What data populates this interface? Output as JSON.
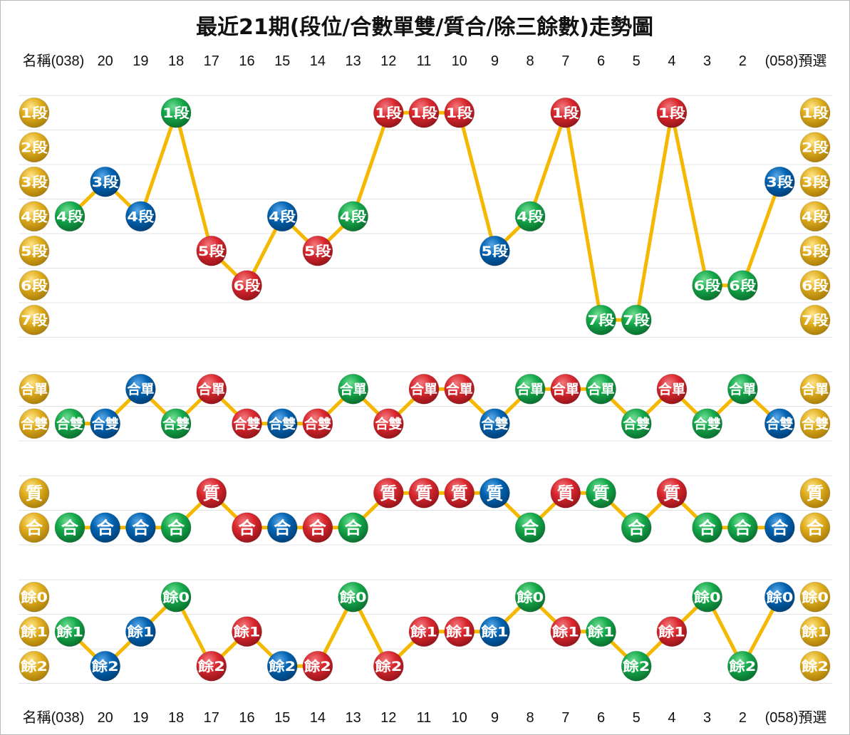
{
  "chart_data": {
    "type": "line",
    "title": "最近21期(段位/合數單雙/質合/除三餘數)走勢圖",
    "header": {
      "first_label": "名稱(038)",
      "periods": [
        "20",
        "19",
        "18",
        "17",
        "16",
        "15",
        "14",
        "13",
        "12",
        "11",
        "10",
        "9",
        "8",
        "7",
        "6",
        "5",
        "4",
        "3",
        "2"
      ],
      "last_label": "(058)預選"
    },
    "colors": {
      "line": "#f5b800",
      "grid": "#e3e3e3",
      "legend": "#d9a91a",
      "red": "#d9272e",
      "green": "#13a84a",
      "blue": "#0062b0"
    },
    "panels": [
      {
        "name": "section",
        "categories": [
          "1段",
          "2段",
          "3段",
          "4段",
          "5段",
          "6段",
          "7段"
        ],
        "first": {
          "value": "4段",
          "color": "green"
        },
        "points": [
          {
            "value": "3段",
            "color": "blue"
          },
          {
            "value": "4段",
            "color": "blue"
          },
          {
            "value": "1段",
            "color": "green"
          },
          {
            "value": "5段",
            "color": "red"
          },
          {
            "value": "6段",
            "color": "red"
          },
          {
            "value": "4段",
            "color": "blue"
          },
          {
            "value": "5段",
            "color": "red"
          },
          {
            "value": "4段",
            "color": "green"
          },
          {
            "value": "1段",
            "color": "red"
          },
          {
            "value": "1段",
            "color": "red"
          },
          {
            "value": "1段",
            "color": "red"
          },
          {
            "value": "5段",
            "color": "blue"
          },
          {
            "value": "4段",
            "color": "green"
          },
          {
            "value": "1段",
            "color": "red"
          },
          {
            "value": "7段",
            "color": "green"
          },
          {
            "value": "7段",
            "color": "green"
          },
          {
            "value": "1段",
            "color": "red"
          },
          {
            "value": "6段",
            "color": "green"
          },
          {
            "value": "6段",
            "color": "green"
          }
        ],
        "prediction": {
          "value": "3段",
          "color": "blue"
        }
      },
      {
        "name": "odd-even",
        "categories": [
          "合單",
          "合雙"
        ],
        "first": {
          "value": "合雙",
          "color": "green"
        },
        "points": [
          {
            "value": "合雙",
            "color": "blue"
          },
          {
            "value": "合單",
            "color": "blue"
          },
          {
            "value": "合雙",
            "color": "green"
          },
          {
            "value": "合單",
            "color": "red"
          },
          {
            "value": "合雙",
            "color": "red"
          },
          {
            "value": "合雙",
            "color": "blue"
          },
          {
            "value": "合雙",
            "color": "red"
          },
          {
            "value": "合單",
            "color": "green"
          },
          {
            "value": "合雙",
            "color": "red"
          },
          {
            "value": "合單",
            "color": "red"
          },
          {
            "value": "合單",
            "color": "red"
          },
          {
            "value": "合雙",
            "color": "blue"
          },
          {
            "value": "合單",
            "color": "green"
          },
          {
            "value": "合單",
            "color": "red"
          },
          {
            "value": "合單",
            "color": "green"
          },
          {
            "value": "合雙",
            "color": "green"
          },
          {
            "value": "合單",
            "color": "red"
          },
          {
            "value": "合雙",
            "color": "green"
          },
          {
            "value": "合單",
            "color": "green"
          }
        ],
        "prediction": {
          "value": "合雙",
          "color": "blue"
        }
      },
      {
        "name": "prime-composite",
        "categories": [
          "質",
          "合"
        ],
        "first": {
          "value": "合",
          "color": "green"
        },
        "points": [
          {
            "value": "合",
            "color": "blue"
          },
          {
            "value": "合",
            "color": "blue"
          },
          {
            "value": "合",
            "color": "green"
          },
          {
            "value": "質",
            "color": "red"
          },
          {
            "value": "合",
            "color": "red"
          },
          {
            "value": "合",
            "color": "blue"
          },
          {
            "value": "合",
            "color": "red"
          },
          {
            "value": "合",
            "color": "green"
          },
          {
            "value": "質",
            "color": "red"
          },
          {
            "value": "質",
            "color": "red"
          },
          {
            "value": "質",
            "color": "red"
          },
          {
            "value": "質",
            "color": "blue"
          },
          {
            "value": "合",
            "color": "green"
          },
          {
            "value": "質",
            "color": "red"
          },
          {
            "value": "質",
            "color": "green"
          },
          {
            "value": "合",
            "color": "green"
          },
          {
            "value": "質",
            "color": "red"
          },
          {
            "value": "合",
            "color": "green"
          },
          {
            "value": "合",
            "color": "green"
          }
        ],
        "prediction": {
          "value": "合",
          "color": "blue"
        }
      },
      {
        "name": "mod-three",
        "categories": [
          "餘0",
          "餘1",
          "餘2"
        ],
        "first": {
          "value": "餘1",
          "color": "green"
        },
        "points": [
          {
            "value": "餘2",
            "color": "blue"
          },
          {
            "value": "餘1",
            "color": "blue"
          },
          {
            "value": "餘0",
            "color": "green"
          },
          {
            "value": "餘2",
            "color": "red"
          },
          {
            "value": "餘1",
            "color": "red"
          },
          {
            "value": "餘2",
            "color": "blue"
          },
          {
            "value": "餘2",
            "color": "red"
          },
          {
            "value": "餘0",
            "color": "green"
          },
          {
            "value": "餘2",
            "color": "red"
          },
          {
            "value": "餘1",
            "color": "red"
          },
          {
            "value": "餘1",
            "color": "red"
          },
          {
            "value": "餘1",
            "color": "blue"
          },
          {
            "value": "餘0",
            "color": "green"
          },
          {
            "value": "餘1",
            "color": "red"
          },
          {
            "value": "餘1",
            "color": "green"
          },
          {
            "value": "餘2",
            "color": "green"
          },
          {
            "value": "餘1",
            "color": "red"
          },
          {
            "value": "餘0",
            "color": "green"
          },
          {
            "value": "餘2",
            "color": "green"
          }
        ],
        "prediction": {
          "value": "餘0",
          "color": "blue"
        }
      }
    ]
  }
}
